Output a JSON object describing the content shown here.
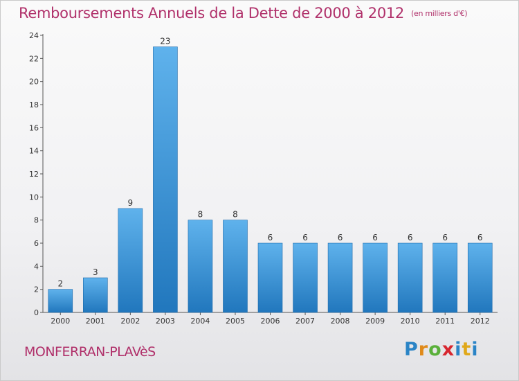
{
  "header": {
    "title": "Remboursements Annuels de la Dette de 2000 à 2012",
    "unit": "(en milliers d'€)"
  },
  "footer": {
    "commune": "MONFERRAN-PLAVèS",
    "logo_text": "Proxiti"
  },
  "colors": {
    "title": "#b0306a",
    "bar_top": "#5fb2ec",
    "bar_bottom": "#2177bd"
  },
  "chart_data": {
    "type": "bar",
    "title": "Remboursements Annuels de la Dette de 2000 à 2012",
    "unit": "(en milliers d'€)",
    "categories": [
      "2000",
      "2001",
      "2002",
      "2003",
      "2004",
      "2005",
      "2006",
      "2007",
      "2008",
      "2009",
      "2010",
      "2011",
      "2012"
    ],
    "values": [
      2,
      3,
      9,
      23,
      8,
      8,
      6,
      6,
      6,
      6,
      6,
      6,
      6
    ],
    "ylim": [
      0,
      24
    ],
    "yticks": [
      0,
      2,
      4,
      6,
      8,
      10,
      12,
      14,
      16,
      18,
      20,
      22,
      24
    ],
    "grid": false,
    "data_labels": true
  }
}
